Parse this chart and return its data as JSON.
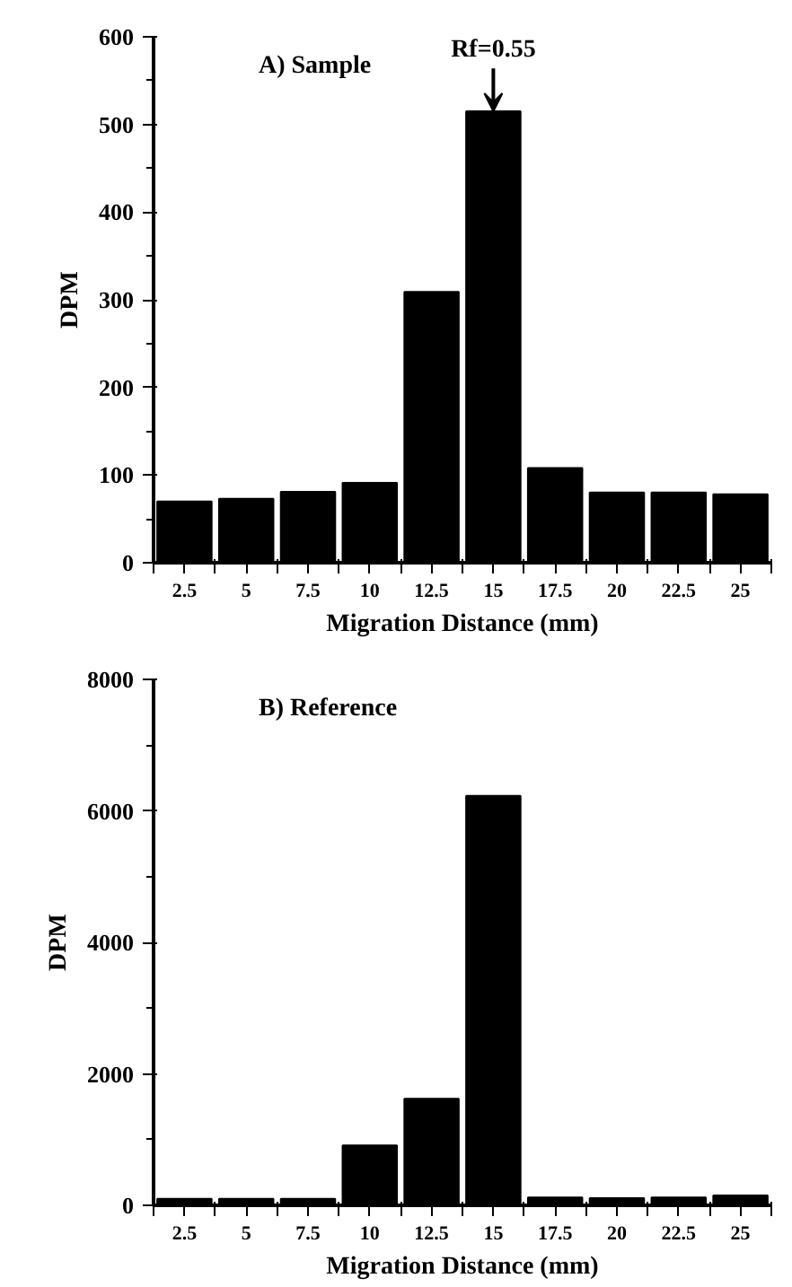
{
  "chart_data": [
    {
      "type": "bar",
      "title": "A) Sample",
      "xlabel": "Migration Distance (mm)",
      "ylabel": "DPM",
      "categories": [
        "2.5",
        "5",
        "7.5",
        "10",
        "12.5",
        "15",
        "17.5",
        "20",
        "22.5",
        "25"
      ],
      "values": [
        70,
        73,
        81,
        91,
        309,
        515,
        108,
        80,
        80,
        78
      ],
      "color": "#000000",
      "ylim": [
        0,
        600
      ],
      "yticks": [
        0,
        100,
        200,
        300,
        400,
        500,
        600
      ],
      "grid": false,
      "annotations": [
        {
          "text": "Rf=0.55",
          "x": "15",
          "y": 515
        }
      ]
    },
    {
      "type": "bar",
      "title": "B) Reference",
      "xlabel": "Migration Distance (mm)",
      "ylabel": "DPM",
      "categories": [
        "2.5",
        "5",
        "7.5",
        "10",
        "12.5",
        "15",
        "17.5",
        "20",
        "22.5",
        "25"
      ],
      "values": [
        100,
        100,
        100,
        910,
        1620,
        6230,
        120,
        110,
        120,
        150
      ],
      "color": "#000000",
      "ylim": [
        0,
        8000
      ],
      "yticks": [
        0,
        2000,
        4000,
        6000,
        8000
      ],
      "grid": false
    }
  ]
}
